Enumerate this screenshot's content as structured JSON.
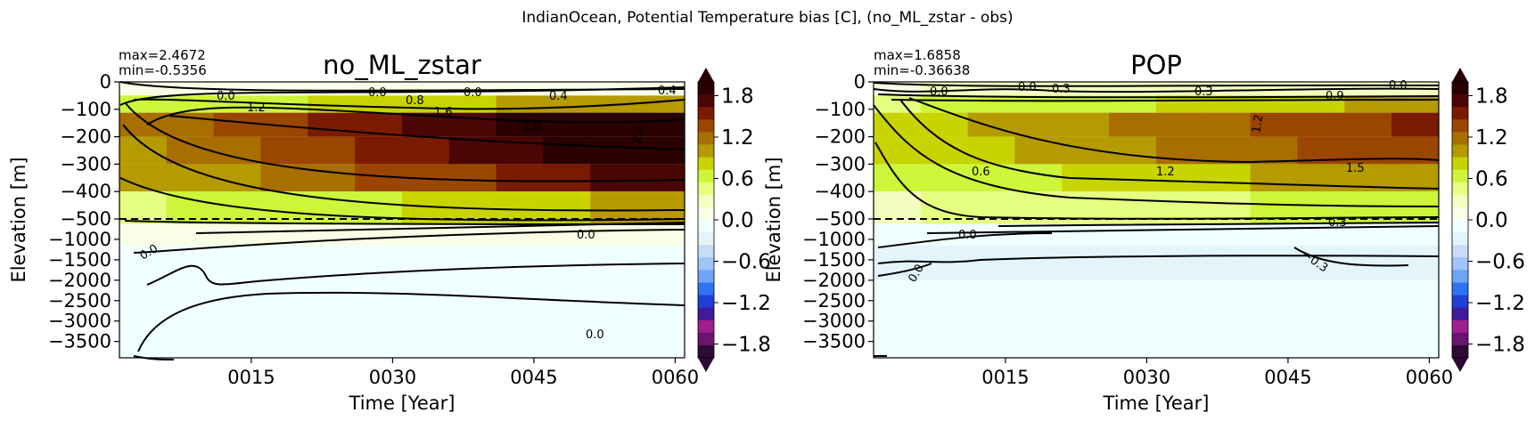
{
  "figure_title": "IndianOcean, Potential Temperature bias [C], (no_ML_zstar - obs)",
  "colors": {
    "colorbar": [
      "#2b0a33",
      "#6b1470",
      "#9e1f8e",
      "#3f1a9a",
      "#1f3fd6",
      "#2e74f0",
      "#6fa3f5",
      "#9fc4f7",
      "#c8dcf8",
      "#e3f4fb",
      "#f0ffff",
      "#f8ffe6",
      "#f3ffc0",
      "#e6ff80",
      "#cdf53a",
      "#c8d400",
      "#b59a00",
      "#a86e00",
      "#9a4500",
      "#7a1a00",
      "#4a0505",
      "#2a0000"
    ],
    "contour": "#000000",
    "reference_line": "#000000"
  },
  "chart_data": [
    {
      "type": "heatmap",
      "title": "no_ML_zstar",
      "stats": [
        "max=2.4672",
        "min=-0.5356"
      ],
      "xlabel": "Time [Year]",
      "ylabel": "Elevation [m]",
      "x_ticks": [
        "0015",
        "0030",
        "0045",
        "0060"
      ],
      "x_range": [
        1,
        61
      ],
      "y_ticks": [
        "0",
        "−100",
        "−200",
        "−300",
        "−400",
        "−500",
        "−1000",
        "−1500",
        "−2000",
        "−2500",
        "−3000",
        "−3500"
      ],
      "y_split_depth": -500,
      "depth_profile": [
        {
          "depth": -25,
          "bias": 0.1
        },
        {
          "depth": -75,
          "bias": 1.0
        },
        {
          "depth": -150,
          "bias": 2.0
        },
        {
          "depth": -250,
          "bias": 1.9
        },
        {
          "depth": -350,
          "bias": 1.6
        },
        {
          "depth": -450,
          "bias": 0.9
        },
        {
          "depth": -800,
          "bias": 0.05
        },
        {
          "depth": -1500,
          "bias": -0.15
        },
        {
          "depth": -2500,
          "bias": -0.05
        },
        {
          "depth": -3500,
          "bias": -0.1
        }
      ],
      "contour_labels": [
        "0.0",
        "0.0",
        "0.0",
        "0.4",
        "0.4",
        "0.8",
        "1.2",
        "1.6",
        "2.0",
        "2.4",
        "0.0",
        "0.0",
        "0.0"
      ],
      "colorbar": {
        "ticks": [
          "1.8",
          "1.2",
          "0.6",
          "0.0",
          "−0.6",
          "−1.2",
          "−1.8"
        ],
        "range": [
          -2.0,
          2.0
        ]
      }
    },
    {
      "type": "heatmap",
      "title": "POP",
      "stats": [
        "max=1.6858",
        "min=-0.36638"
      ],
      "xlabel": "Time [Year]",
      "ylabel": "Elevation [m]",
      "x_ticks": [
        "0015",
        "0030",
        "0045",
        "0060"
      ],
      "x_range": [
        1,
        61
      ],
      "y_ticks": [
        "0",
        "−100",
        "−200",
        "−300",
        "−400",
        "−500",
        "−1000",
        "−1500",
        "−2000",
        "−2500",
        "−3000",
        "−3500"
      ],
      "y_split_depth": -500,
      "depth_profile": [
        {
          "depth": -25,
          "bias": 0.3
        },
        {
          "depth": -75,
          "bias": 0.9
        },
        {
          "depth": -150,
          "bias": 1.4
        },
        {
          "depth": -250,
          "bias": 1.35
        },
        {
          "depth": -350,
          "bias": 1.0
        },
        {
          "depth": -450,
          "bias": 0.6
        },
        {
          "depth": -800,
          "bias": -0.05
        },
        {
          "depth": -1500,
          "bias": -0.2
        },
        {
          "depth": -2500,
          "bias": -0.1
        },
        {
          "depth": -3500,
          "bias": -0.1
        }
      ],
      "contour_labels": [
        "0.0",
        "0.0",
        "0.3",
        "0.3",
        "0.9",
        "0.0",
        "1.2",
        "0.6",
        "1.2",
        "1.5",
        "0.3",
        "0.0",
        "−0.3",
        "0.0"
      ],
      "colorbar": {
        "ticks": [
          "1.8",
          "1.2",
          "0.6",
          "0.0",
          "−0.6",
          "−1.2",
          "−1.8"
        ],
        "range": [
          -2.0,
          2.0
        ]
      }
    }
  ]
}
